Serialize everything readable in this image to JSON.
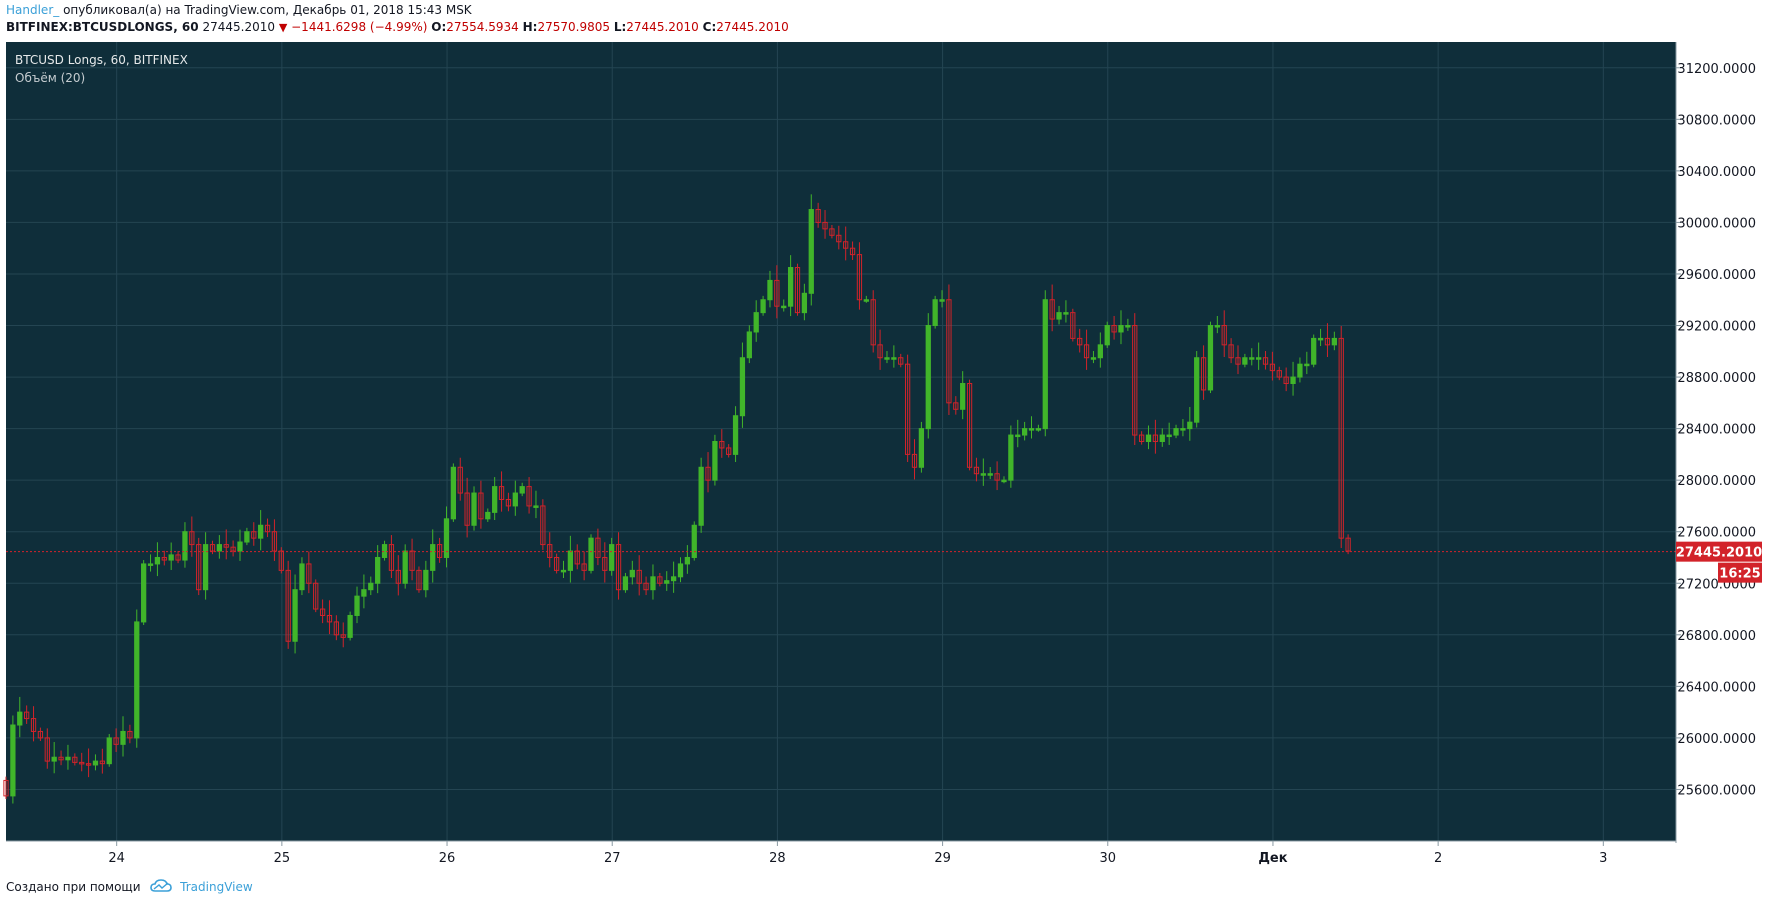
{
  "header": {
    "user": "Handler_",
    "published_text": " опубликовал(а) на TradingView.com, Декабрь 01, 2018 15:43 MSK",
    "symbol": "BITFINEX:BTCUSDLONGS, 60",
    "last": "27445.2010",
    "change": "−1441.6298 (−4.99%)",
    "o_label": "O:",
    "o_value": "27554.5934",
    "h_label": "H:",
    "h_value": "27570.9805",
    "l_label": "L:",
    "l_value": "27445.2010",
    "c_label": "C:",
    "c_value": "27445.2010"
  },
  "legend": {
    "title": "BTCUSD Longs, 60, BITFINEX",
    "volume": "Объём (20)"
  },
  "footer": {
    "created_with": "Создано при помощи",
    "brand": "TradingView"
  },
  "colors": {
    "background": "#0f2e3a",
    "grid": "#244552",
    "up": "#41b52a",
    "down": "#d2232a",
    "price_label": "#d2232a",
    "axis_text": "#131722"
  },
  "chart_data": {
    "type": "candlestick",
    "title": "BTCUSD Longs, 60, BITFINEX",
    "ylim": [
      25200,
      31400
    ],
    "xlim": [
      23.33,
      33.44
    ],
    "y_ticks": [
      "25600.0000",
      "26000.0000",
      "26400.0000",
      "26800.0000",
      "27200.0000",
      "27600.0000",
      "28000.0000",
      "28400.0000",
      "28800.0000",
      "29200.0000",
      "29600.0000",
      "30000.0000",
      "30400.0000",
      "30800.0000",
      "31200.0000"
    ],
    "x_ticks": [
      {
        "t": 24,
        "label": "24"
      },
      {
        "t": 25,
        "label": "25"
      },
      {
        "t": 26,
        "label": "26"
      },
      {
        "t": 27,
        "label": "27"
      },
      {
        "t": 28,
        "label": "28"
      },
      {
        "t": 29,
        "label": "29"
      },
      {
        "t": 30,
        "label": "30"
      },
      {
        "t": 31,
        "label": "Дек"
      },
      {
        "t": 32,
        "label": "2"
      },
      {
        "t": 33,
        "label": "3"
      }
    ],
    "last_price": "27445.2010",
    "countdown": "16:25",
    "grid": true,
    "start": 23.33,
    "step_hours": 1,
    "closes": [
      25550,
      26100,
      26200,
      26150,
      26050,
      26000,
      25820,
      25850,
      25830,
      25850,
      25810,
      25800,
      25790,
      25820,
      25800,
      26000,
      25950,
      26050,
      26000,
      26900,
      27350,
      27350,
      27400,
      27380,
      27420,
      27380,
      27600,
      27500,
      27150,
      27500,
      27450,
      27500,
      27480,
      27450,
      27520,
      27600,
      27550,
      27650,
      27600,
      27450,
      27300,
      26750,
      27150,
      27350,
      27200,
      27000,
      26950,
      26900,
      26800,
      26780,
      26950,
      27100,
      27150,
      27200,
      27400,
      27500,
      27300,
      27200,
      27450,
      27300,
      27150,
      27300,
      27500,
      27400,
      27700,
      28100,
      27900,
      27650,
      27900,
      27700,
      27750,
      27950,
      27850,
      27800,
      27900,
      27950,
      27800,
      27800,
      27500,
      27400,
      27300,
      27300,
      27450,
      27350,
      27300,
      27550,
      27400,
      27300,
      27500,
      27150,
      27250,
      27300,
      27200,
      27150,
      27250,
      27200,
      27220,
      27250,
      27350,
      27400,
      27650,
      28100,
      28000,
      28300,
      28250,
      28200,
      28500,
      28950,
      29150,
      29300,
      29400,
      29550,
      29350,
      29350,
      29650,
      29300,
      29450,
      30100,
      30000,
      29950,
      29900,
      29850,
      29800,
      29750,
      29400,
      29400,
      29050,
      28950,
      28950,
      28950,
      28900,
      28200,
      28100,
      28400,
      29200,
      29400,
      29400,
      28600,
      28550,
      28750,
      28100,
      28050,
      28050,
      28050,
      28000,
      28000,
      28350,
      28350,
      28400,
      28400,
      28400,
      29400,
      29250,
      29300,
      29300,
      29100,
      29050,
      28950,
      28950,
      29050,
      29200,
      29150,
      29200,
      29200,
      28350,
      28300,
      28350,
      28300,
      28350,
      28350,
      28400,
      28400,
      28450,
      28950,
      28700,
      29200,
      29200,
      29050,
      28950,
      28900,
      28950,
      28950,
      28950,
      28900,
      28850,
      28800,
      28750,
      28800,
      28900,
      28900,
      29100,
      29100,
      29050,
      29100,
      27550,
      27450
    ]
  }
}
